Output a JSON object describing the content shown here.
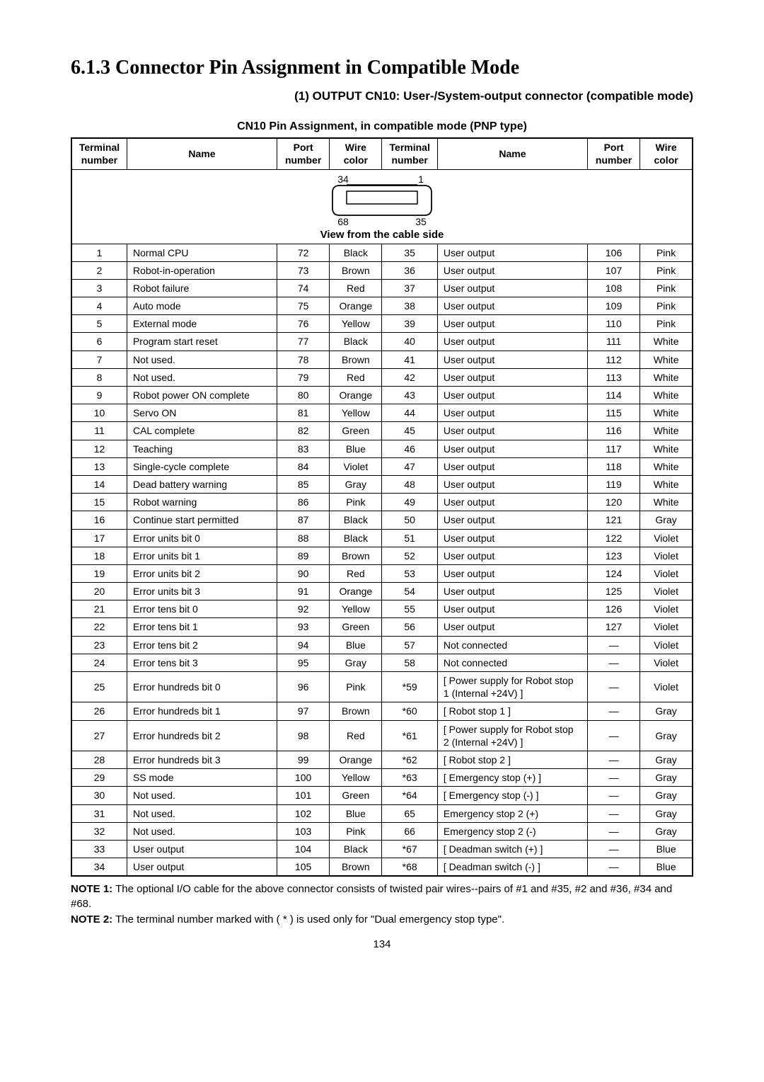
{
  "section_title": "6.1.3   Connector Pin Assignment in Compatible Mode",
  "subsection_title": "(1) OUTPUT CN10: User-/System-output connector (compatible mode)",
  "table_caption": "CN10 Pin Assignment, in compatible mode (PNP type)",
  "diagram": {
    "top_left_label": "34",
    "top_right_label": "1",
    "bottom_left_label": "68",
    "bottom_right_label": "35",
    "caption": "View from the cable side"
  },
  "columns": [
    {
      "label": "Terminal number"
    },
    {
      "label": "Name"
    },
    {
      "label": "Port number"
    },
    {
      "label": "Wire color"
    },
    {
      "label": "Terminal number"
    },
    {
      "label": "Name"
    },
    {
      "label": "Port number"
    },
    {
      "label": "Wire color"
    }
  ],
  "rows": [
    [
      "1",
      "Normal CPU",
      "72",
      "Black",
      "35",
      "User output",
      "106",
      "Pink"
    ],
    [
      "2",
      "Robot-in-operation",
      "73",
      "Brown",
      "36",
      "User output",
      "107",
      "Pink"
    ],
    [
      "3",
      "Robot failure",
      "74",
      "Red",
      "37",
      "User output",
      "108",
      "Pink"
    ],
    [
      "4",
      "Auto mode",
      "75",
      "Orange",
      "38",
      "User output",
      "109",
      "Pink"
    ],
    [
      "5",
      "External mode",
      "76",
      "Yellow",
      "39",
      "User output",
      "110",
      "Pink"
    ],
    [
      "6",
      "Program start reset",
      "77",
      "Black",
      "40",
      "User output",
      "111",
      "White"
    ],
    [
      "7",
      "Not used.",
      "78",
      "Brown",
      "41",
      "User output",
      "112",
      "White"
    ],
    [
      "8",
      "Not used.",
      "79",
      "Red",
      "42",
      "User output",
      "113",
      "White"
    ],
    [
      "9",
      "Robot power ON complete",
      "80",
      "Orange",
      "43",
      "User output",
      "114",
      "White"
    ],
    [
      "10",
      "Servo ON",
      "81",
      "Yellow",
      "44",
      "User output",
      "115",
      "White"
    ],
    [
      "11",
      "CAL complete",
      "82",
      "Green",
      "45",
      "User output",
      "116",
      "White"
    ],
    [
      "12",
      "Teaching",
      "83",
      "Blue",
      "46",
      "User output",
      "117",
      "White"
    ],
    [
      "13",
      "Single-cycle complete",
      "84",
      "Violet",
      "47",
      "User output",
      "118",
      "White"
    ],
    [
      "14",
      "Dead battery warning",
      "85",
      "Gray",
      "48",
      "User output",
      "119",
      "White"
    ],
    [
      "15",
      "Robot warning",
      "86",
      "Pink",
      "49",
      "User output",
      "120",
      "White"
    ],
    [
      "16",
      "Continue start permitted",
      "87",
      "Black",
      "50",
      "User output",
      "121",
      "Gray"
    ],
    [
      "17",
      "Error units bit 0",
      "88",
      "Black",
      "51",
      "User output",
      "122",
      "Violet"
    ],
    [
      "18",
      "Error units bit 1",
      "89",
      "Brown",
      "52",
      "User output",
      "123",
      "Violet"
    ],
    [
      "19",
      "Error units bit 2",
      "90",
      "Red",
      "53",
      "User output",
      "124",
      "Violet"
    ],
    [
      "20",
      "Error units bit 3",
      "91",
      "Orange",
      "54",
      "User output",
      "125",
      "Violet"
    ],
    [
      "21",
      "Error tens bit 0",
      "92",
      "Yellow",
      "55",
      "User output",
      "126",
      "Violet"
    ],
    [
      "22",
      "Error tens bit 1",
      "93",
      "Green",
      "56",
      "User output",
      "127",
      "Violet"
    ],
    [
      "23",
      "Error tens bit 2",
      "94",
      "Blue",
      "57",
      "Not connected",
      "—",
      "Violet"
    ],
    [
      "24",
      "Error tens bit 3",
      "95",
      "Gray",
      "58",
      "Not connected",
      "—",
      "Violet"
    ],
    [
      "25",
      "Error hundreds bit 0",
      "96",
      "Pink",
      "*59",
      "[ Power supply for Robot stop 1 (Internal +24V) ]",
      "—",
      "Violet"
    ],
    [
      "26",
      "Error hundreds bit 1",
      "97",
      "Brown",
      "*60",
      "[ Robot stop 1 ]",
      "—",
      "Gray"
    ],
    [
      "27",
      "Error hundreds bit 2",
      "98",
      "Red",
      "*61",
      "[ Power supply for Robot stop 2 (Internal +24V) ]",
      "—",
      "Gray"
    ],
    [
      "28",
      "Error hundreds bit 3",
      "99",
      "Orange",
      "*62",
      "[ Robot stop 2 ]",
      "—",
      "Gray"
    ],
    [
      "29",
      "SS mode",
      "100",
      "Yellow",
      "*63",
      "[ Emergency stop (+) ]",
      "—",
      "Gray"
    ],
    [
      "30",
      "Not used.",
      "101",
      "Green",
      "*64",
      "[ Emergency stop  (-) ]",
      "—",
      "Gray"
    ],
    [
      "31",
      "Not used.",
      "102",
      "Blue",
      "65",
      "Emergency stop 2 (+)",
      "—",
      "Gray"
    ],
    [
      "32",
      "Not used.",
      "103",
      "Pink",
      "66",
      "Emergency stop 2 (-)",
      "—",
      "Gray"
    ],
    [
      "33",
      "User output",
      "104",
      "Black",
      "*67",
      "[ Deadman switch  (+) ]",
      "—",
      "Blue"
    ],
    [
      "34",
      "User output",
      "105",
      "Brown",
      "*68",
      "[ Deadman switch  (-) ]",
      "—",
      "Blue"
    ]
  ],
  "note1_label": "NOTE 1:",
  "note1_text": " The optional I/O cable for the above connector consists of twisted pair wires--pairs of #1 and #35, #2 and #36, #34 and #68.",
  "note2_label": "NOTE 2:",
  "note2_text": " The terminal number marked with ( * ) is used only for \"Dual emergency stop type\".",
  "page_number": "134"
}
